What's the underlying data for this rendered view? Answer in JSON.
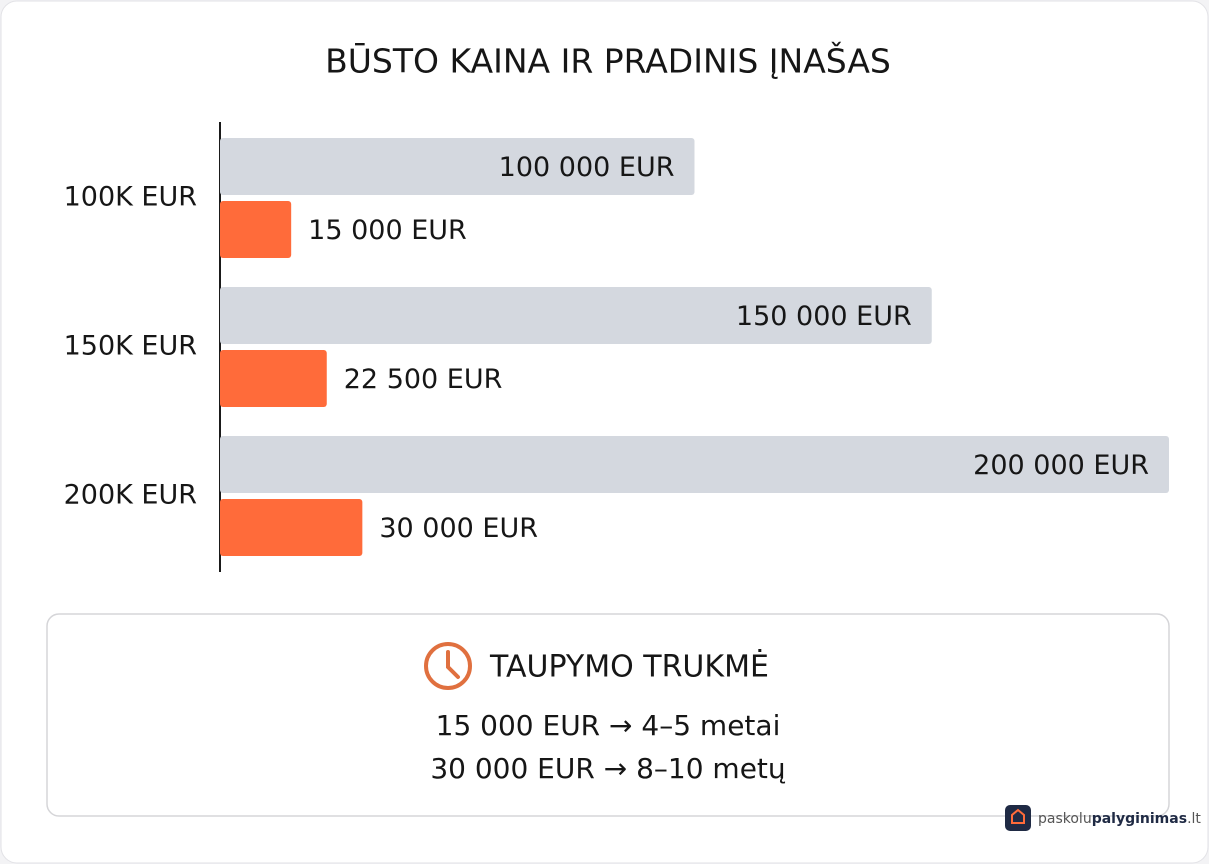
{
  "chart_data": {
    "type": "bar",
    "orientation": "horizontal",
    "title": "BŪSTO KAINA IR PRADINIS ĮNAŠAS",
    "categories": [
      "100K EUR",
      "150K EUR",
      "200K EUR"
    ],
    "series": [
      {
        "color": "#d4d8df",
        "values": [
          100000,
          150000,
          200000
        ],
        "value_labels": [
          "100 000 EUR",
          "150 000 EUR",
          "200 000 EUR"
        ]
      },
      {
        "color": "#ff6b3a",
        "values": [
          15000,
          22500,
          30000
        ],
        "value_labels": [
          "15 000 EUR",
          "22 500 EUR",
          "30 000 EUR"
        ]
      }
    ],
    "xlim": [
      0,
      200000
    ]
  },
  "savings": {
    "title": "TAUPYMO TRUKMĖ",
    "lines": [
      "15 000 EUR → 4–5 metai",
      "30 000 EUR → 8–10 metų"
    ]
  },
  "brand": {
    "parts": [
      "paskolu",
      "palyginimas",
      ".lt"
    ]
  }
}
